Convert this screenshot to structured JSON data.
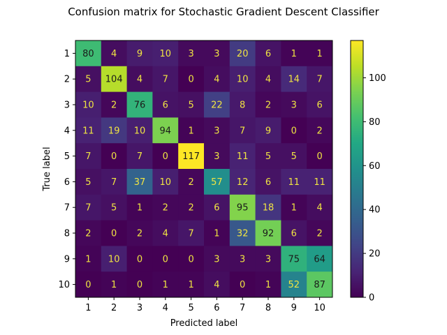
{
  "chart_data": {
    "type": "heatmap",
    "title": "Confusion matrix for Stochastic Gradient Descent Classifier",
    "xlabel": "Predicted label",
    "ylabel": "True label",
    "x_categories": [
      "1",
      "2",
      "3",
      "4",
      "5",
      "6",
      "7",
      "8",
      "9",
      "10"
    ],
    "y_categories": [
      "1",
      "2",
      "3",
      "4",
      "5",
      "6",
      "7",
      "8",
      "9",
      "10"
    ],
    "values": [
      [
        80,
        4,
        9,
        10,
        3,
        3,
        20,
        6,
        1,
        1
      ],
      [
        5,
        104,
        4,
        7,
        0,
        4,
        10,
        4,
        14,
        7
      ],
      [
        10,
        2,
        76,
        6,
        5,
        22,
        8,
        2,
        3,
        6
      ],
      [
        11,
        19,
        10,
        94,
        1,
        3,
        7,
        9,
        0,
        2
      ],
      [
        7,
        0,
        7,
        0,
        117,
        3,
        11,
        5,
        5,
        0
      ],
      [
        5,
        7,
        37,
        10,
        2,
        57,
        12,
        6,
        11,
        11
      ],
      [
        7,
        5,
        1,
        2,
        2,
        6,
        95,
        18,
        1,
        4
      ],
      [
        2,
        0,
        2,
        4,
        7,
        1,
        32,
        92,
        6,
        2
      ],
      [
        1,
        10,
        0,
        0,
        0,
        3,
        3,
        3,
        75,
        64
      ],
      [
        0,
        1,
        0,
        1,
        1,
        4,
        0,
        1,
        52,
        87
      ]
    ],
    "colormap": "viridis",
    "colorbar": {
      "min": 0,
      "max": 117,
      "ticks": [
        0,
        20,
        40,
        60,
        80,
        100
      ]
    }
  }
}
